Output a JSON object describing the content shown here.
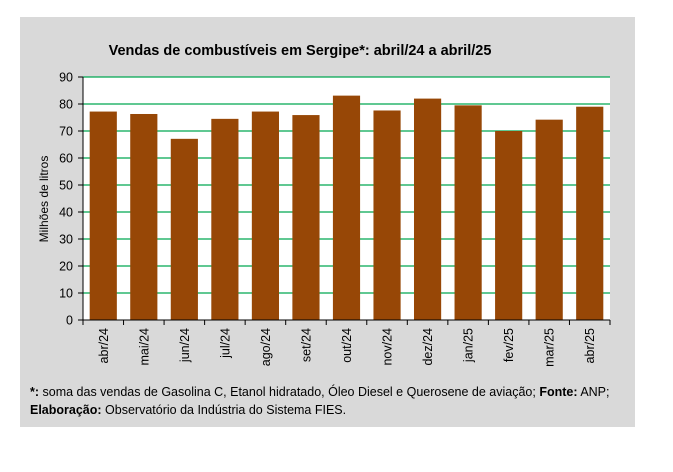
{
  "chart_data": {
    "type": "bar",
    "title": "Vendas de combustíveis em Sergipe*: abril/24 a abril/25",
    "xlabel": "",
    "ylabel": "Milhões de litros",
    "ylim": [
      0,
      90
    ],
    "yticks": [
      0,
      10,
      20,
      30,
      40,
      50,
      60,
      70,
      80,
      90
    ],
    "grid": true,
    "categories": [
      "abr/24",
      "mai/24",
      "jun/24",
      "jul/24",
      "ago/24",
      "set/24",
      "out/24",
      "nov/24",
      "dez/24",
      "jan/25",
      "fev/25",
      "mar/25",
      "abr/25"
    ],
    "values": [
      77.2,
      76.3,
      67.1,
      74.5,
      77.2,
      75.9,
      83.1,
      77.6,
      82.0,
      79.5,
      70.0,
      74.2,
      79.0
    ],
    "colors": {
      "bar": "#974706",
      "grid": "#00a651",
      "axis": "#000000",
      "background": "#ffffff"
    }
  },
  "footnote": {
    "line1_marker": "*:",
    "line1_text": " soma das vendas de Gasolina C, Etanol hidratado, Óleo Diesel e Querosene de aviação; ",
    "line1_source_label": "Fonte:",
    "line1_source": " ANP;",
    "line2_label": "Elaboração:",
    "line2_text": " Observatório da Indústria do Sistema FIES."
  }
}
